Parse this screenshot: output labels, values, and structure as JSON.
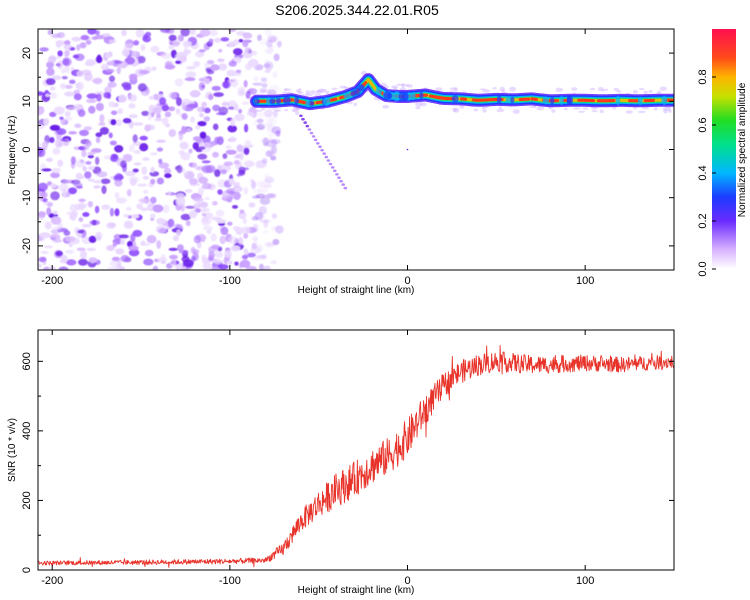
{
  "title": "S206.2025.344.22.01.R05",
  "chart_data": [
    {
      "type": "heatmap",
      "name": "spectrogram",
      "xlabel": "Height of straight line (km)",
      "ylabel": "Frequency (Hz)",
      "xlim": [
        -208,
        150
      ],
      "ylim": [
        -25,
        25
      ],
      "x_ticks": [
        -200,
        -100,
        0,
        100
      ],
      "y_ticks": [
        -20,
        -10,
        0,
        10,
        20
      ],
      "noise_region_x": [
        -208,
        -80
      ],
      "ridge": {
        "x": [
          -85,
          -75,
          -65,
          -55,
          -45,
          -35,
          -28,
          -22,
          -18,
          -12,
          -5,
          0,
          10,
          20,
          30,
          40,
          50,
          60,
          70,
          80,
          90,
          100,
          110,
          120,
          130,
          140,
          150
        ],
        "freq": [
          10,
          10,
          10.3,
          9.5,
          10,
          11,
          12,
          14.5,
          12.5,
          11.2,
          11,
          11,
          11.3,
          10.6,
          10.5,
          10.2,
          10.4,
          10.3,
          10.5,
          10.1,
          10.2,
          10.2,
          10.1,
          10.2,
          10.1,
          10.2,
          10.2
        ]
      },
      "branch": {
        "x": [
          -60,
          -35
        ],
        "freq": [
          7,
          -8
        ]
      },
      "colorbar": {
        "label": "Normalized spectral amplitude",
        "range": [
          0,
          1
        ],
        "ticks": [
          "0.0",
          "0.2",
          "0.4",
          "0.6",
          "0.8"
        ],
        "tick_values": [
          0,
          0.2,
          0.4,
          0.6,
          0.8
        ]
      }
    },
    {
      "type": "line",
      "name": "snr",
      "xlabel": "Height of straight line (km)",
      "ylabel": "SNR (10 * v/v)",
      "xlim": [
        -208,
        150
      ],
      "ylim": [
        0,
        690
      ],
      "x_ticks": [
        -200,
        -100,
        0,
        100
      ],
      "y_ticks": [
        0,
        200,
        400,
        600
      ],
      "color": "#e8332a",
      "trend": {
        "x": [
          -208,
          -150,
          -100,
          -80,
          -70,
          -60,
          -50,
          -40,
          -30,
          -20,
          -10,
          0,
          10,
          20,
          30,
          40,
          50,
          60,
          70,
          80,
          100,
          120,
          150
        ],
        "y": [
          20,
          22,
          25,
          28,
          60,
          140,
          190,
          230,
          260,
          300,
          330,
          380,
          460,
          530,
          570,
          590,
          600,
          595,
          590,
          590,
          595,
          590,
          600
        ]
      },
      "noise": {
        "x": [
          -208,
          -80,
          -70,
          -40,
          0,
          20,
          50,
          80,
          150
        ],
        "amp": [
          6,
          8,
          20,
          50,
          55,
          35,
          30,
          25,
          20
        ]
      }
    }
  ]
}
